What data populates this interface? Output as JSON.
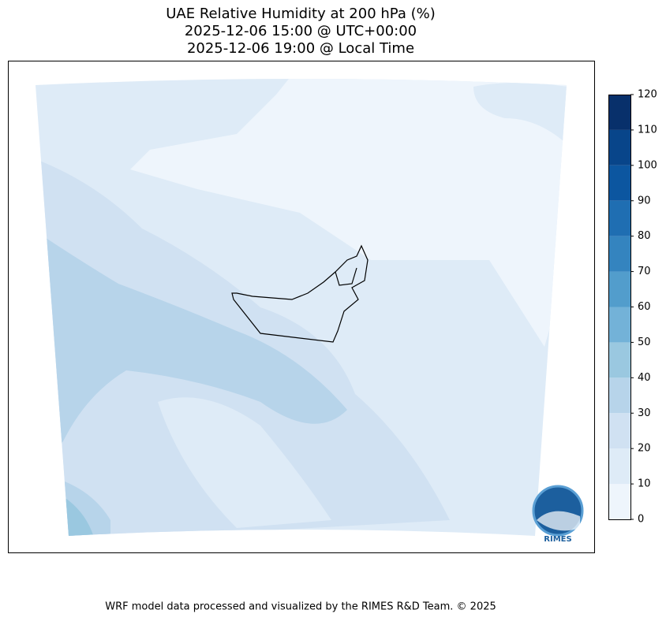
{
  "title": [
    "UAE Relative Humidity at 200 hPa (%)",
    "2025-12-06 15:00 @ UTC+00:00",
    "2025-12-06 19:00 @ Local Time"
  ],
  "colorbar": {
    "lim": [
      0,
      120
    ],
    "ticks": [
      0,
      10,
      20,
      30,
      40,
      50,
      60,
      70,
      80,
      90,
      100,
      110,
      120
    ],
    "colors": [
      "#eef5fc",
      "#deebf7",
      "#d0e1f2",
      "#b7d4ea",
      "#9ac8e0",
      "#73b2d8",
      "#529dcc",
      "#3484bf",
      "#1f6eb2",
      "#0c56a0",
      "#08458a",
      "#08306b"
    ]
  },
  "logo": "RIMES",
  "footer": "WRF model data processed and visualized by the RIMES R&D Team. © 2025"
}
